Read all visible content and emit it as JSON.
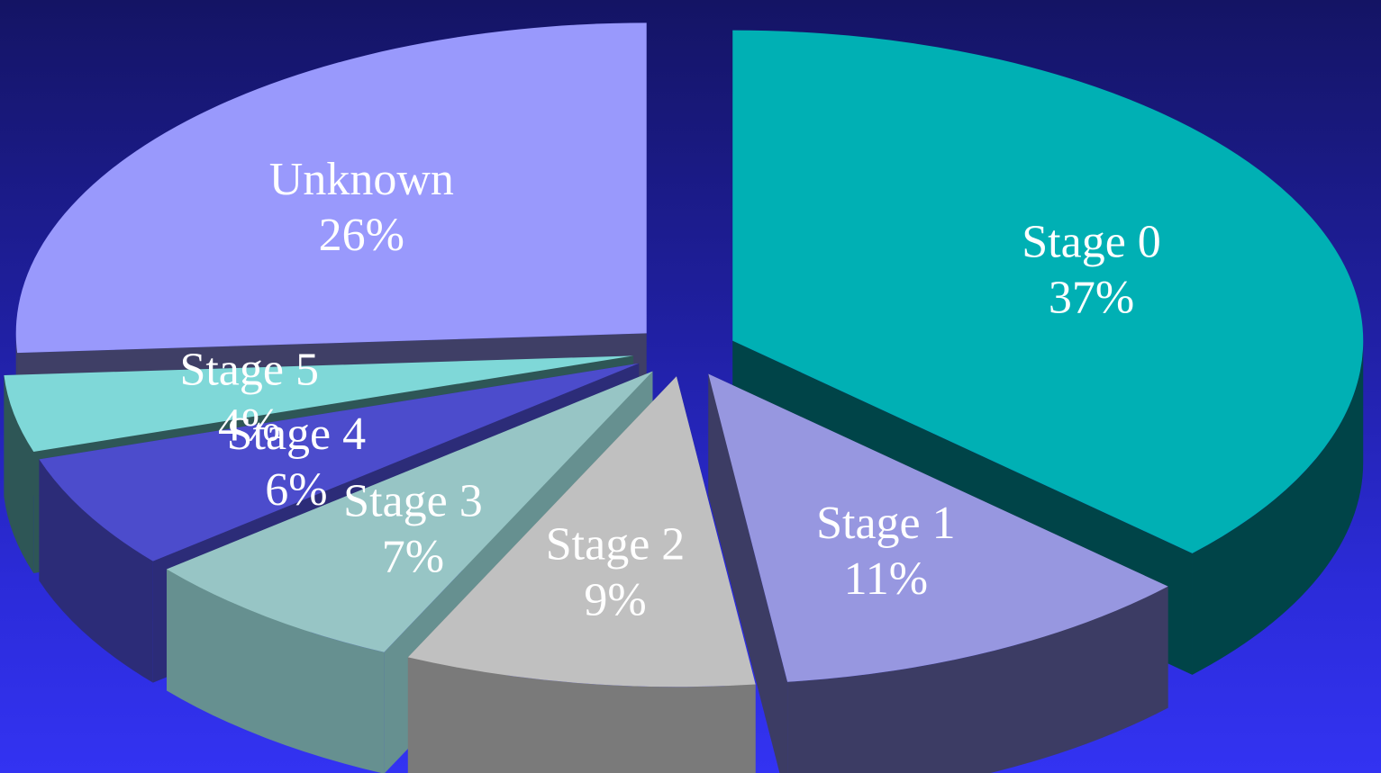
{
  "chart_data": {
    "type": "pie",
    "style": "3d-exploded",
    "slices": [
      {
        "label": "Stage 0",
        "value": 37,
        "value_label": "37%",
        "top_color": "#00b0b4",
        "side_color": "#004448"
      },
      {
        "label": "Stage 1",
        "value": 11,
        "value_label": "11%",
        "top_color": "#9797e0",
        "side_color": "#3c3c64"
      },
      {
        "label": "Stage 2",
        "value": 9,
        "value_label": "9%",
        "top_color": "#c0c0c0",
        "side_color": "#7a7a7a"
      },
      {
        "label": "Stage 3",
        "value": 7,
        "value_label": "7%",
        "top_color": "#97c5c5",
        "side_color": "#669090"
      },
      {
        "label": "Stage 4",
        "value": 6,
        "value_label": "6%",
        "top_color": "#4c4ccc",
        "side_color": "#2c2c78"
      },
      {
        "label": "Stage 5",
        "value": 4,
        "value_label": "4%",
        "top_color": "#7fd8d8",
        "side_color": "#2e5656"
      },
      {
        "label": "Unknown",
        "value": 26,
        "value_label": "26%",
        "top_color": "#9999fc",
        "side_color": "#3f3f66"
      }
    ],
    "start_angle_deg": 0,
    "direction": "clockwise",
    "legend": "none",
    "data_labels": "inside"
  },
  "colors": {
    "background_top": "#141464",
    "background_bottom": "#3333f2",
    "label_text": "#ffffff"
  }
}
